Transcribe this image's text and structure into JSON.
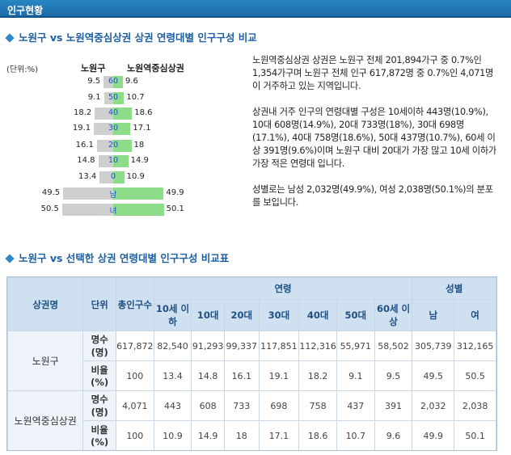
{
  "header": {
    "title": "인구현황"
  },
  "section1": {
    "title": "노원구 vs 노원역중심상권 상권 연령대별 인구구성 비교"
  },
  "chart_data": {
    "type": "bar",
    "unit_label": "(단위:%)",
    "left_series_name": "노원구",
    "right_series_name": "노원역중심상권",
    "categories": [
      "60",
      "50",
      "40",
      "30",
      "20",
      "10",
      "0",
      "남",
      "녀"
    ],
    "series": [
      {
        "name": "노원구",
        "values": [
          9.5,
          9.1,
          18.2,
          19.1,
          16.1,
          14.8,
          13.4,
          49.5,
          50.5
        ]
      },
      {
        "name": "노원역중심상권",
        "values": [
          9.6,
          10.7,
          18.6,
          17.1,
          18,
          14.9,
          10.9,
          49.9,
          50.1
        ]
      }
    ],
    "left_labels": [
      "9.5",
      "9.1",
      "18.2",
      "19.1",
      "16.1",
      "14.8",
      "13.4",
      "49.5",
      "50.5"
    ],
    "right_labels": [
      "9.6",
      "10.7",
      "18.6",
      "17.1",
      "18",
      "14.9",
      "10.9",
      "49.9",
      "50.1"
    ],
    "colors": {
      "left": "#cfcfcf",
      "right": "#8ddc8a",
      "center_label": "#1a4fd0"
    }
  },
  "description": {
    "para1": "노원역중심상권 상권은 노원구 전체 201,894가구 중 0.7%인 1,354가구며 노원구 전체 인구 617,872명 중 0.7%인 4,071명이 거주하고 있는 지역입니다.",
    "para2": "상권내 거주 인구의 연령대별 구성은 10세이하 443명(10.9%), 10대 608명(14.9%), 20대 733명(18%), 30대 698명(17.1%), 40대 758명(18.6%), 50대 437명(10.7%), 60세 이상 391명(9.6%)이며 노원구 대비 20대가 가장 많고 10세 이하가 가장 적은 연령대 입니다.",
    "para3": "성별로는 남성 2,032명(49.9%), 여성 2,038명(50.1%)의 분포를 보입니다."
  },
  "section2": {
    "title": "노원구 vs 선택한 상권 연령대별 인구구성 비교표"
  },
  "table": {
    "head": {
      "area": "상권명",
      "unit": "단위",
      "total": "총인구수",
      "age_group": "연령",
      "gender_group": "성별",
      "ages": [
        "10세 이하",
        "10대",
        "20대",
        "30대",
        "40대",
        "50대",
        "60세 이상"
      ],
      "genders": [
        "남",
        "여"
      ]
    },
    "rows": [
      {
        "area": "노원구",
        "count_label": "명수(명)",
        "ratio_label": "비율(%)",
        "counts": [
          "617,872",
          "82,540",
          "91,293",
          "99,337",
          "117,851",
          "112,316",
          "55,971",
          "58,502",
          "305,739",
          "312,165"
        ],
        "ratios": [
          "100",
          "13.4",
          "14.8",
          "16.1",
          "19.1",
          "18.2",
          "9.1",
          "9.5",
          "49.5",
          "50.5"
        ]
      },
      {
        "area": "노원역중심상권",
        "count_label": "명수(명)",
        "ratio_label": "비율(%)",
        "counts": [
          "4,071",
          "443",
          "608",
          "733",
          "698",
          "758",
          "437",
          "391",
          "2,032",
          "2,038"
        ],
        "ratios": [
          "100",
          "10.9",
          "14.9",
          "18",
          "17.1",
          "18.6",
          "10.7",
          "9.6",
          "49.9",
          "50.1"
        ]
      }
    ]
  }
}
